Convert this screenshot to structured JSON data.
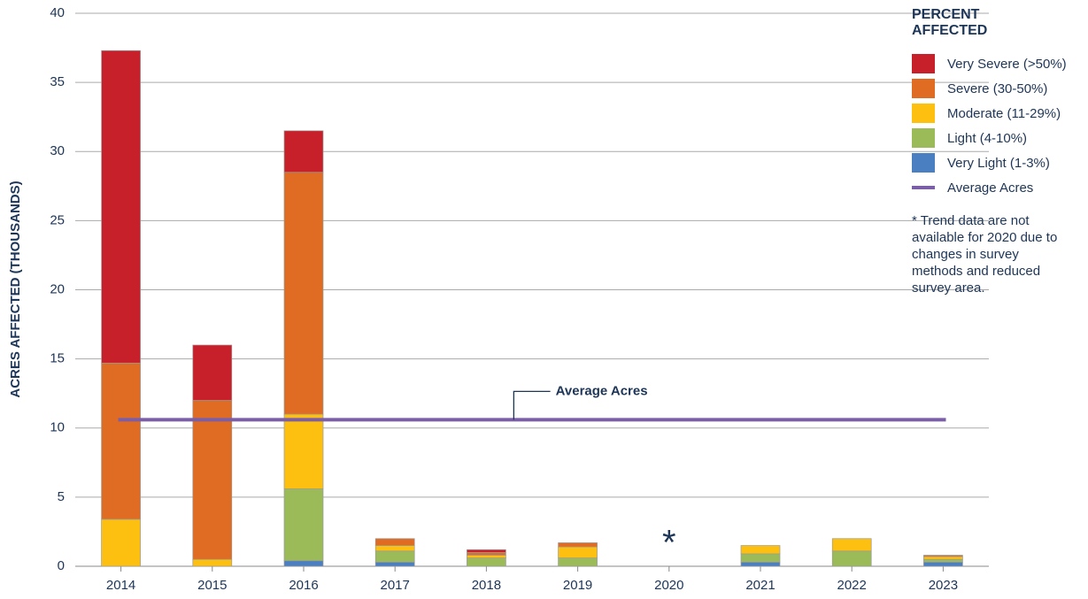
{
  "chart_data": {
    "type": "stacked_bar",
    "y_label": "ACRES AFFECTED (THOUSANDS)",
    "legend_title": "PERCENT AFFECTED",
    "categories": [
      "2014",
      "2015",
      "2016",
      "2017",
      "2018",
      "2019",
      "2020",
      "2021",
      "2022",
      "2023"
    ],
    "series": [
      {
        "name": "Very Light (1-3%)",
        "color": "#4a7fc1",
        "values": [
          0,
          0,
          0.4,
          0.3,
          0,
          0,
          null,
          0.3,
          0,
          0.3
        ]
      },
      {
        "name": "Light (4-10%)",
        "color": "#9bbb59",
        "values": [
          0,
          0,
          5.2,
          0.8,
          0.6,
          0.6,
          null,
          0.6,
          1.1,
          0.2
        ]
      },
      {
        "name": "Moderate (11-29%)",
        "color": "#fdc010",
        "values": [
          3.4,
          0.5,
          5.4,
          0.4,
          0.2,
          0.8,
          null,
          0.6,
          0.9,
          0.2
        ]
      },
      {
        "name": "Severe (30-50%)",
        "color": "#e06c23",
        "values": [
          11.3,
          11.5,
          17.5,
          0.5,
          0.2,
          0.3,
          null,
          0,
          0,
          0.1
        ]
      },
      {
        "name": "Very Severe (>50%)",
        "color": "#c8202a",
        "values": [
          22.6,
          4.0,
          3.0,
          0,
          0.2,
          0,
          null,
          0,
          0,
          0
        ]
      }
    ],
    "average": {
      "name": "Average Acres",
      "value": 10.6,
      "color": "#7b5ea8"
    },
    "missing_marker": "*",
    "note": "* Trend data are not available for 2020 due to changes in survey methods and reduced survey area.",
    "ylim": [
      0,
      40
    ],
    "yticks": [
      0,
      5,
      10,
      15,
      20,
      25,
      30,
      35,
      40
    ],
    "grid": true
  }
}
